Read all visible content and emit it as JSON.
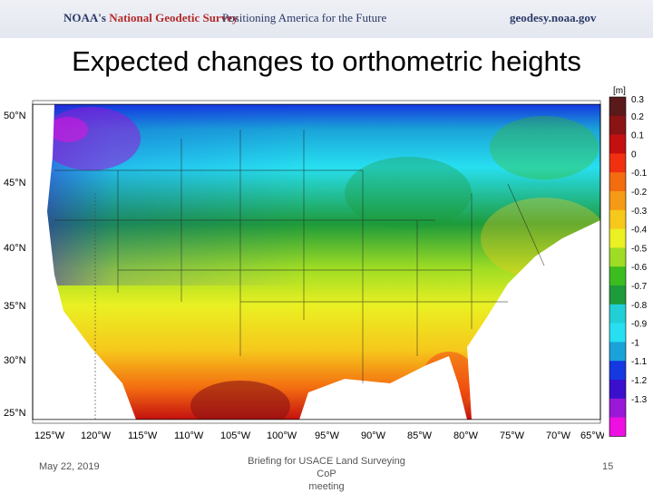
{
  "banner": {
    "org_prefix": "NOAA's ",
    "org_name": "National Geodetic Survey",
    "tagline": "Positioning America for the Future",
    "url": "geodesy.noaa.gov"
  },
  "slide": {
    "title": "Expected changes to orthometric heights"
  },
  "map": {
    "latitude_labels": [
      "50°N",
      "45°N",
      "40°N",
      "35°N",
      "30°N",
      "25°N"
    ],
    "longitude_labels": [
      "125°W",
      "120°W",
      "115°W",
      "110°W",
      "105°W",
      "100°W",
      "95°W",
      "90°W",
      "85°W",
      "80°W",
      "75°W",
      "70°W",
      "65°W"
    ]
  },
  "colorbar": {
    "unit": "[m]",
    "labels": [
      "0.3",
      "0.2",
      "0.1",
      "0",
      "-0.1",
      "-0.2",
      "-0.3",
      "-0.4",
      "-0.5",
      "-0.6",
      "-0.7",
      "-0.8",
      "-0.9",
      "-1",
      "-1.1",
      "-1.2",
      "-1.3"
    ],
    "colors": [
      "#5a1a1a",
      "#8a1414",
      "#c41010",
      "#f03010",
      "#f36c10",
      "#f59a15",
      "#f6c81c",
      "#eaf022",
      "#9fdc24",
      "#3cbc1f",
      "#1e9b3a",
      "#22cfd6",
      "#27dff0",
      "#1aa3d8",
      "#1538e0",
      "#3a10cc",
      "#9a18d8",
      "#ee10e0"
    ]
  },
  "footer": {
    "date": "May 22, 2019",
    "center_line1": "Briefing for USACE Land Surveying CoP",
    "center_line2": "meeting",
    "page_number": "15"
  }
}
